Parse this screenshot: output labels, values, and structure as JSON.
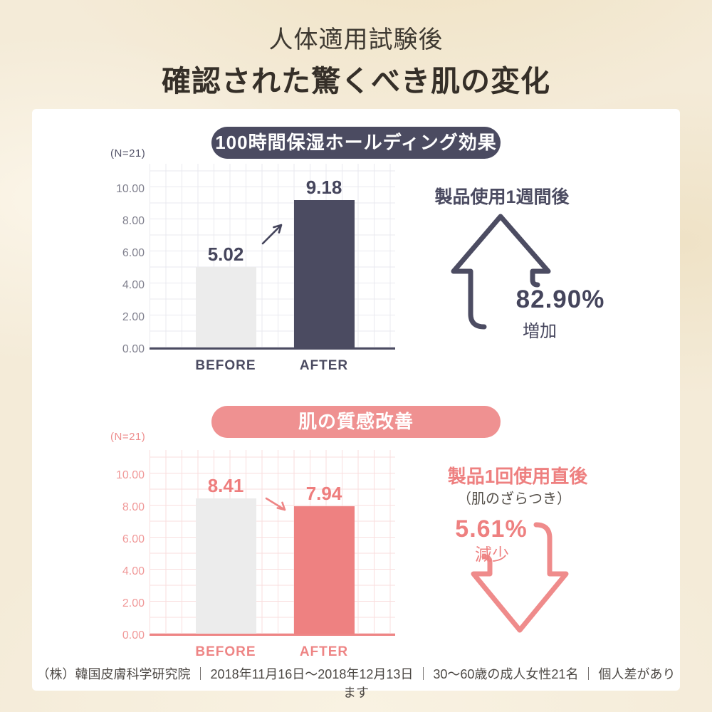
{
  "header": {
    "subtitle": "人体適用試験後",
    "title": "確認された驚くべき肌の変化"
  },
  "colors": {
    "background": "#f4ebd8",
    "card": "#ffffff",
    "navy_accent": "#4b4b61",
    "pink_accent": "#ee8585",
    "pink_pill": "#ef9191",
    "before_bar": "#ececec",
    "grid_navy": "#e9e9ef",
    "grid_pink": "#f9dede",
    "footer_text": "#4c4844"
  },
  "icons": {
    "increase_arrow": "up-outline-arrow",
    "decrease_arrow": "down-outline-arrow",
    "trend_up": "diagonal-up-arrow",
    "trend_down": "diagonal-down-arrow"
  },
  "chart_data": [
    {
      "type": "bar",
      "title": "100時間保湿ホールディング効果",
      "sample_label": "(N=21)",
      "categories": [
        "BEFORE",
        "AFTER"
      ],
      "values": [
        5.02,
        9.18
      ],
      "value_labels": [
        "5.02",
        "9.18"
      ],
      "ylim": [
        0,
        10
      ],
      "yticks": [
        "10.00",
        "8.00",
        "6.00",
        "4.00",
        "2.00",
        "0.00"
      ],
      "grid": true,
      "legend_position": "none",
      "bar_colors": [
        "#ececec",
        "#4b4b61"
      ],
      "annotation": {
        "heading": "製品使用1週間後",
        "percent": "82.90%",
        "label": "増加",
        "arrow_direction": "up"
      }
    },
    {
      "type": "bar",
      "title": "肌の質感改善",
      "sample_label": "(N=21)",
      "categories": [
        "BEFORE",
        "AFTER"
      ],
      "values": [
        8.41,
        7.94
      ],
      "value_labels": [
        "8.41",
        "7.94"
      ],
      "ylim": [
        0,
        10
      ],
      "yticks": [
        "10.00",
        "8.00",
        "6.00",
        "4.00",
        "2.00",
        "0.00"
      ],
      "grid": true,
      "legend_position": "none",
      "bar_colors": [
        "#ececec",
        "#ee8181"
      ],
      "annotation": {
        "heading": "製品1回使用直後",
        "subheading": "（肌のざらつき）",
        "percent": "5.61%",
        "label": "減少",
        "arrow_direction": "down"
      }
    }
  ],
  "footer": {
    "text": "（株）韓国皮膚科学研究院 ｜ 2018年11月16日〜2018年12月13日 ｜ 30〜60歳の成人女性21名 ｜ 個人差があります"
  }
}
